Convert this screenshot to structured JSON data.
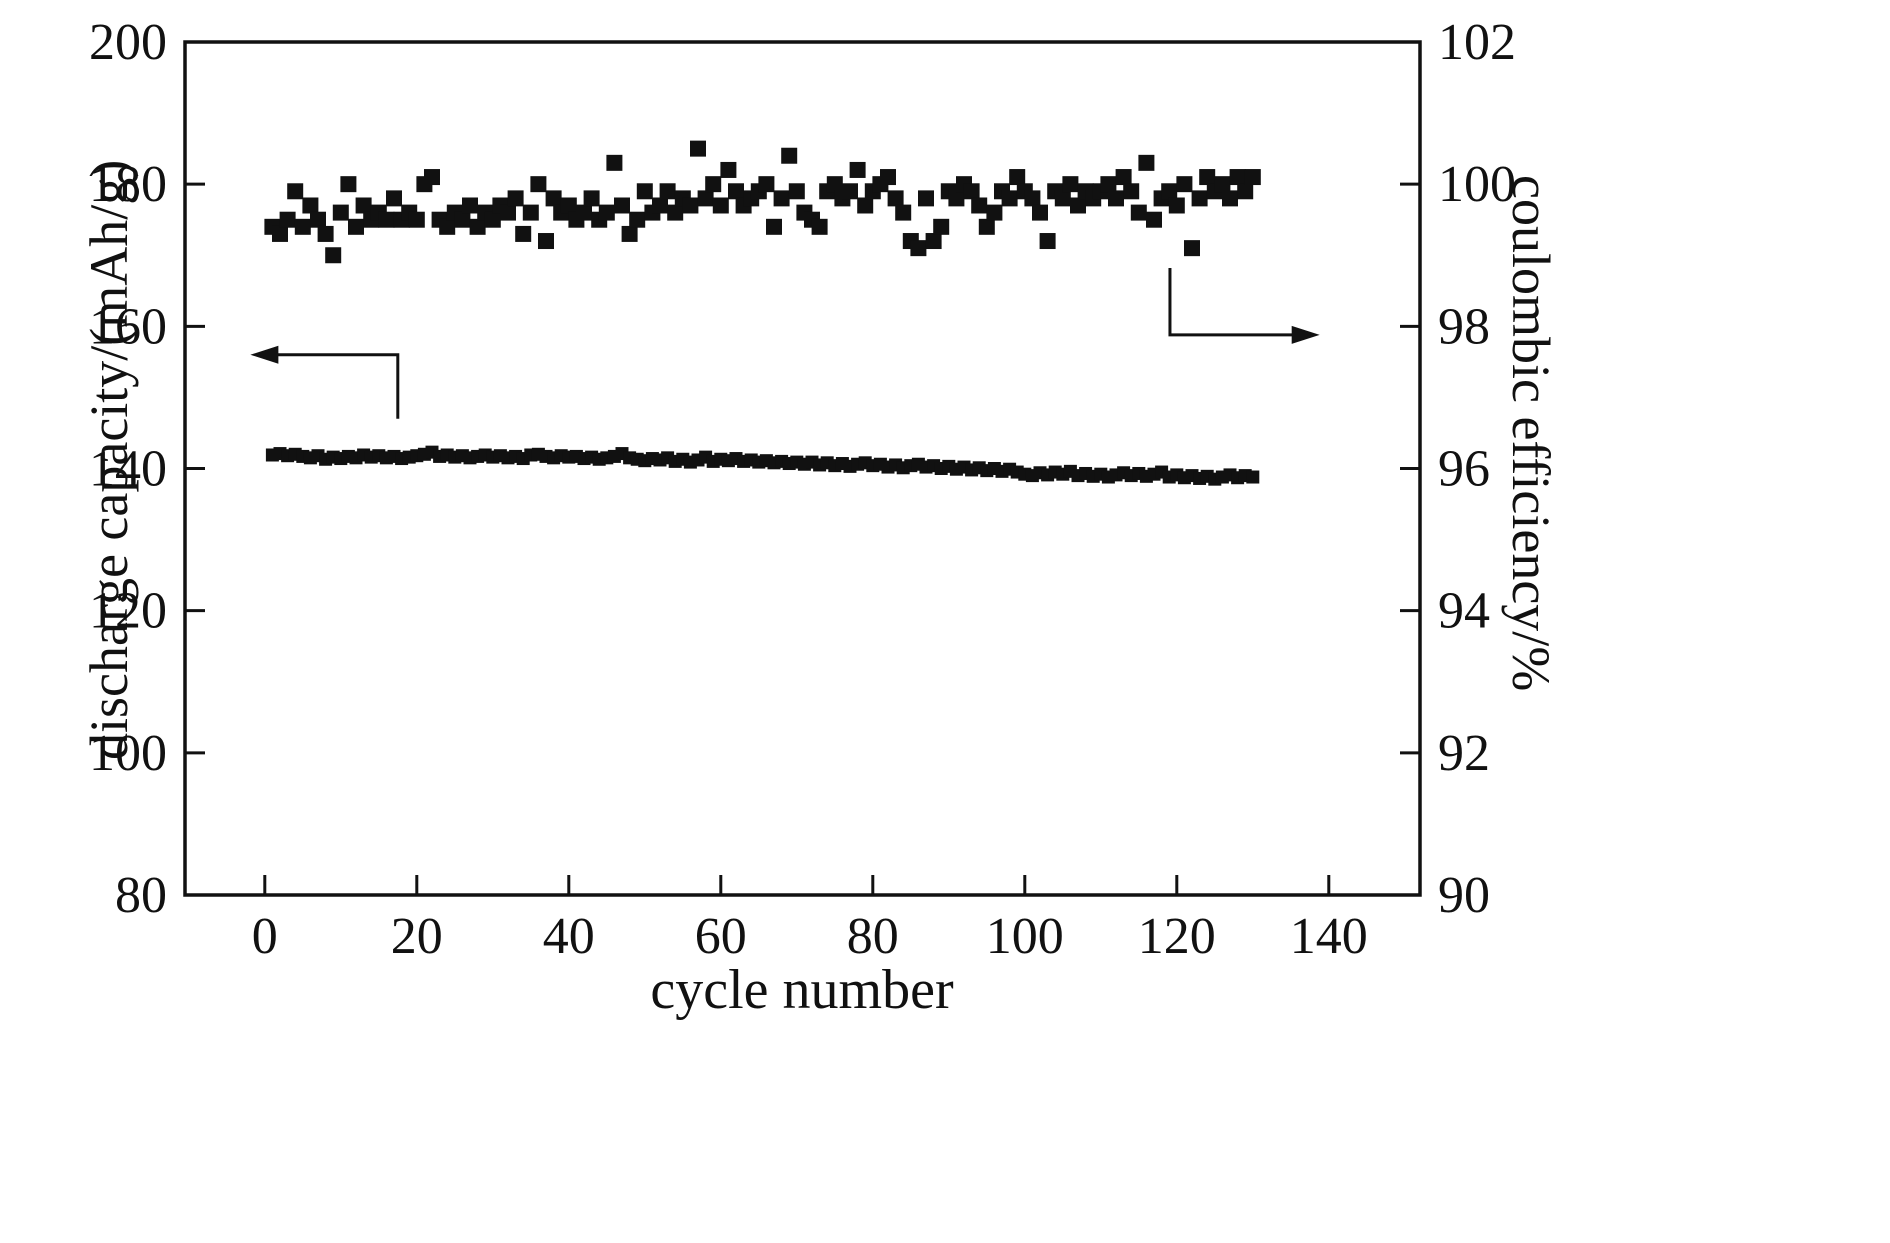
{
  "figure": {
    "kind": "dual-axis scatter plot",
    "background": "#ffffff",
    "marker_shape": "filled-square",
    "marker_color": "#111111"
  },
  "chart_data": {
    "type": "scatter",
    "title": "",
    "xlabel": "cycle number",
    "ylabel_left": "discharge capacity/(mAh/g)",
    "ylabel_right": "coulombic efficiency/%",
    "xlim": [
      -10.5,
      152
    ],
    "x_ticks": [
      0,
      20,
      40,
      60,
      80,
      100,
      120,
      140
    ],
    "ylim_left": [
      80,
      200
    ],
    "yticks_left": [
      80,
      100,
      120,
      140,
      160,
      180,
      200
    ],
    "ylim_right": [
      90,
      102
    ],
    "yticks_right": [
      90,
      92,
      94,
      96,
      98,
      100,
      102
    ],
    "grid": false,
    "legend": "none",
    "series": [
      {
        "name": "discharge capacity",
        "axis": "left",
        "marker_size": 13,
        "x_start": 1,
        "x_step": 1,
        "y": [
          141.9,
          142.1,
          141.8,
          142.0,
          141.7,
          141.5,
          141.8,
          141.3,
          141.6,
          141.4,
          141.7,
          141.5,
          141.9,
          141.6,
          141.8,
          141.5,
          141.7,
          141.4,
          141.6,
          141.8,
          142.0,
          142.3,
          141.7,
          141.9,
          141.6,
          141.8,
          141.5,
          141.7,
          141.9,
          141.6,
          141.8,
          141.5,
          141.7,
          141.4,
          141.9,
          142.0,
          141.7,
          141.5,
          141.8,
          141.6,
          141.7,
          141.4,
          141.6,
          141.3,
          141.5,
          141.7,
          142.1,
          141.5,
          141.3,
          141.1,
          141.4,
          141.2,
          141.5,
          141.0,
          141.3,
          140.9,
          141.2,
          141.6,
          141.0,
          141.3,
          141.1,
          141.4,
          141.0,
          141.2,
          140.9,
          141.1,
          140.8,
          141.0,
          140.7,
          140.9,
          140.6,
          140.9,
          140.5,
          140.8,
          140.4,
          140.7,
          140.3,
          140.6,
          140.8,
          140.4,
          140.6,
          140.2,
          140.5,
          140.1,
          140.4,
          140.6,
          140.2,
          140.4,
          140.0,
          140.3,
          139.9,
          140.2,
          139.8,
          140.1,
          139.7,
          140.0,
          139.6,
          139.9,
          139.5,
          139.2,
          139.0,
          139.4,
          139.1,
          139.5,
          139.2,
          139.6,
          139.0,
          139.3,
          138.9,
          139.2,
          138.8,
          139.1,
          139.4,
          139.0,
          139.3,
          138.9,
          139.2,
          139.5,
          138.8,
          139.1,
          138.7,
          139.0,
          138.6,
          138.9,
          138.5,
          138.8,
          139.1,
          138.7,
          139.0,
          138.8
        ]
      },
      {
        "name": "coulombic efficiency",
        "axis": "right",
        "marker_size": 16,
        "x_start": 1,
        "x_step": 1,
        "y": [
          99.4,
          99.3,
          99.5,
          99.9,
          99.4,
          99.7,
          99.5,
          99.3,
          99.0,
          99.6,
          100.0,
          99.4,
          99.7,
          99.5,
          99.6,
          99.5,
          99.8,
          99.5,
          99.6,
          99.5,
          100.0,
          100.1,
          99.5,
          99.4,
          99.6,
          99.5,
          99.7,
          99.4,
          99.6,
          99.5,
          99.7,
          99.6,
          99.8,
          99.3,
          99.6,
          100.0,
          99.2,
          99.8,
          99.6,
          99.7,
          99.5,
          99.6,
          99.8,
          99.5,
          99.6,
          100.3,
          99.7,
          99.3,
          99.5,
          99.9,
          99.6,
          99.7,
          99.9,
          99.6,
          99.8,
          99.7,
          100.5,
          99.8,
          100.0,
          99.7,
          100.2,
          99.9,
          99.7,
          99.8,
          99.9,
          100.0,
          99.4,
          99.8,
          100.4,
          99.9,
          99.6,
          99.5,
          99.4,
          99.9,
          100.0,
          99.8,
          99.9,
          100.2,
          99.7,
          99.9,
          100.0,
          100.1,
          99.8,
          99.6,
          99.2,
          99.1,
          99.8,
          99.2,
          99.4,
          99.9,
          99.8,
          100.0,
          99.9,
          99.7,
          99.4,
          99.6,
          99.9,
          99.8,
          100.1,
          99.9,
          99.8,
          99.6,
          99.2,
          99.9,
          99.8,
          100.0,
          99.7,
          99.9,
          99.8,
          99.9,
          100.0,
          99.8,
          100.1,
          99.9,
          99.6,
          100.3,
          99.5,
          99.8,
          99.9,
          99.7,
          100.0,
          99.1,
          99.8,
          100.1,
          99.9,
          100.0,
          99.8,
          100.1,
          99.9,
          100.1
        ]
      }
    ],
    "annotations": [
      {
        "name": "left-axis-pointer-arrow",
        "axis": "left",
        "points": [
          [
            17.5,
            147.0
          ],
          [
            17.5,
            156.0
          ],
          [
            -1.9,
            156.0
          ]
        ],
        "arrow_at": "end"
      },
      {
        "name": "right-axis-pointer-arrow",
        "axis": "left",
        "points": [
          [
            119.1,
            168.2
          ],
          [
            119.1,
            158.8
          ],
          [
            138.8,
            158.8
          ]
        ],
        "arrow_at": "end"
      }
    ]
  }
}
